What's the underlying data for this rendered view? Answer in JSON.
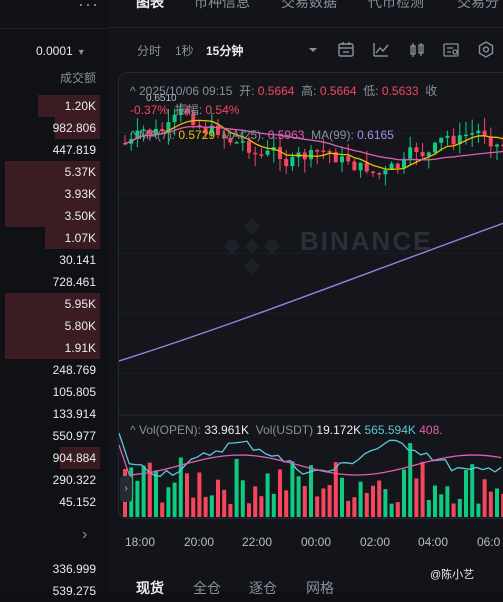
{
  "left": {
    "more_icon": "more-dots-icon",
    "precision": "0.0001",
    "column_header": "成交额",
    "rows": [
      {
        "value": "1.20K",
        "bar": 0.62
      },
      {
        "value": "982.806",
        "bar": 0.45
      },
      {
        "value": "447.819",
        "bar": 0.0
      },
      {
        "value": "5.37K",
        "bar": 0.95
      },
      {
        "value": "3.93K",
        "bar": 0.95
      },
      {
        "value": "3.50K",
        "bar": 0.95
      },
      {
        "value": "1.07K",
        "bar": 0.55
      },
      {
        "value": "30.141",
        "bar": 0.0
      },
      {
        "value": "728.461",
        "bar": 0.0
      },
      {
        "value": "5.95K",
        "bar": 0.95
      },
      {
        "value": "5.80K",
        "bar": 0.95
      },
      {
        "value": "1.91K",
        "bar": 0.95
      },
      {
        "value": "248.769",
        "bar": 0.0
      },
      {
        "value": "105.805",
        "bar": 0.0
      },
      {
        "value": "133.914",
        "bar": 0.0
      },
      {
        "value": "550.977",
        "bar": 0.0
      },
      {
        "value": "904.884",
        "bar": 0.4
      },
      {
        "value": "290.322",
        "bar": 0.0
      },
      {
        "value": "45.152",
        "bar": 0.0
      }
    ],
    "bottom_rows": [
      "336.999",
      "539.275"
    ]
  },
  "tabs": [
    "图表",
    "币种信息",
    "交易数据",
    "代币检测",
    "交易分"
  ],
  "timeframes": [
    "分时",
    "1秒",
    "15分钟"
  ],
  "ohlc": {
    "datetime": "2025/10/06 09:15",
    "open_label": "开:",
    "open": "0.5664",
    "high_label": "高:",
    "high": "0.5664",
    "low_label": "低:",
    "low": "0.5633",
    "close_label": "收",
    "change": "-0.37%",
    "amp_label": "振幅:",
    "amp": "0.54%"
  },
  "price_marker": "0.6510",
  "ma": {
    "ma7_label": "MA(7):",
    "ma7": "0.5729",
    "ma25_label": "MA(25):",
    "ma25": "0.5963",
    "ma99_label": "MA(99):",
    "ma99": "0.6165"
  },
  "vol": {
    "open_label": "Vol(OPEN):",
    "open": "33.961K",
    "usdt_label": "Vol(USDT)",
    "usdt": "19.172K",
    "ma1": "565.594K",
    "ma2": "408."
  },
  "xaxis": [
    "18:00",
    "20:00",
    "22:00",
    "00:00",
    "02:00",
    "04:00",
    "06:0"
  ],
  "bottom_tabs": [
    "现货",
    "全仓",
    "逐仓",
    "网格"
  ],
  "watermark": "@陈小艺",
  "logo_text": "BINANCE",
  "colors": {
    "up": "#0ecb81",
    "down": "#f6465d",
    "ma7": "#f0b90b",
    "ma25": "#e05fb3",
    "ma99": "#9b7fe0",
    "vol_ma": "#5fc8d8"
  }
}
